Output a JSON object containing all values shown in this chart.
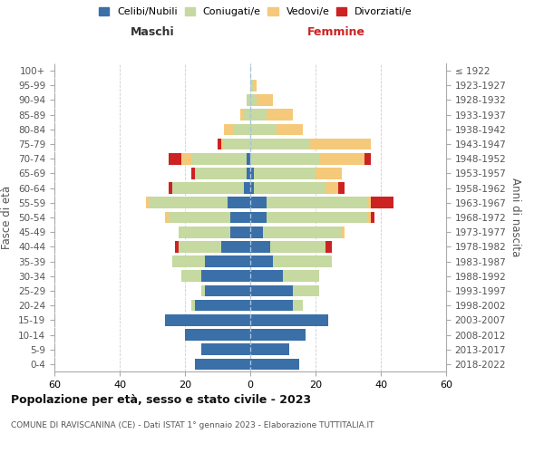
{
  "age_groups": [
    "0-4",
    "5-9",
    "10-14",
    "15-19",
    "20-24",
    "25-29",
    "30-34",
    "35-39",
    "40-44",
    "45-49",
    "50-54",
    "55-59",
    "60-64",
    "65-69",
    "70-74",
    "75-79",
    "80-84",
    "85-89",
    "90-94",
    "95-99",
    "100+"
  ],
  "birth_years": [
    "2018-2022",
    "2013-2017",
    "2008-2012",
    "2003-2007",
    "1998-2002",
    "1993-1997",
    "1988-1992",
    "1983-1987",
    "1978-1982",
    "1973-1977",
    "1968-1972",
    "1963-1967",
    "1958-1962",
    "1953-1957",
    "1948-1952",
    "1943-1947",
    "1938-1942",
    "1933-1937",
    "1928-1932",
    "1923-1927",
    "≤ 1922"
  ],
  "male": {
    "celibi": [
      17,
      15,
      20,
      26,
      17,
      14,
      15,
      14,
      9,
      6,
      6,
      7,
      2,
      1,
      1,
      0,
      0,
      0,
      0,
      0,
      0
    ],
    "coniugati": [
      0,
      0,
      0,
      0,
      1,
      1,
      6,
      10,
      13,
      16,
      19,
      24,
      22,
      16,
      17,
      8,
      5,
      2,
      1,
      0,
      0
    ],
    "vedovi": [
      0,
      0,
      0,
      0,
      0,
      0,
      0,
      0,
      0,
      0,
      1,
      1,
      0,
      0,
      3,
      1,
      3,
      1,
      0,
      0,
      0
    ],
    "divorziati": [
      0,
      0,
      0,
      0,
      0,
      0,
      0,
      0,
      1,
      0,
      0,
      0,
      1,
      1,
      4,
      1,
      0,
      0,
      0,
      0,
      0
    ]
  },
  "female": {
    "nubili": [
      15,
      12,
      17,
      24,
      13,
      13,
      10,
      7,
      6,
      4,
      5,
      5,
      1,
      1,
      0,
      0,
      0,
      0,
      0,
      0,
      0
    ],
    "coniugate": [
      0,
      0,
      0,
      0,
      3,
      8,
      11,
      18,
      17,
      24,
      31,
      31,
      22,
      19,
      21,
      18,
      8,
      5,
      2,
      1,
      0
    ],
    "vedove": [
      0,
      0,
      0,
      0,
      0,
      0,
      0,
      0,
      0,
      1,
      1,
      1,
      4,
      8,
      14,
      19,
      8,
      8,
      5,
      1,
      0
    ],
    "divorziate": [
      0,
      0,
      0,
      0,
      0,
      0,
      0,
      0,
      2,
      0,
      1,
      7,
      2,
      0,
      2,
      0,
      0,
      0,
      0,
      0,
      0
    ]
  },
  "colors": {
    "celibi": "#3a6fa8",
    "coniugati": "#c5d9a0",
    "vedovi": "#f5c97a",
    "divorziati": "#cc2222"
  },
  "xlim": 60,
  "title": "Popolazione per età, sesso e stato civile - 2023",
  "subtitle": "COMUNE DI RAVISCANINA (CE) - Dati ISTAT 1° gennaio 2023 - Elaborazione TUTTITALIA.IT",
  "ylabel": "Fasce di età",
  "right_ylabel": "Anni di nascita",
  "legend_labels": [
    "Celibi/Nubili",
    "Coniugati/e",
    "Vedovi/e",
    "Divorziati/e"
  ],
  "maschi_label": "Maschi",
  "femmine_label": "Femmine",
  "maschi_color": "#333333",
  "femmine_color": "#cc2222"
}
